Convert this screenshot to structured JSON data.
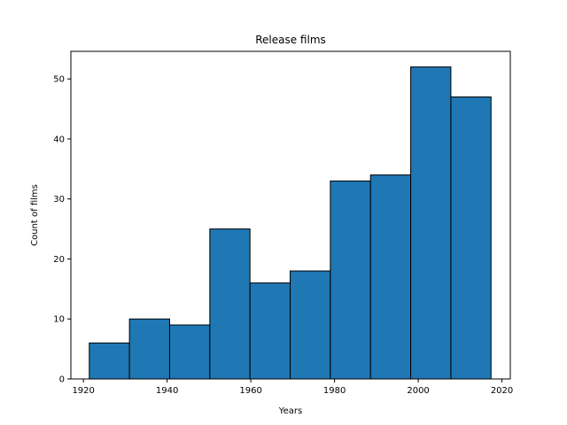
{
  "chart_data": {
    "type": "bar",
    "title": "Release films",
    "xlabel": "Years",
    "ylabel": "Count of films",
    "bin_edges": [
      1921.4,
      1931.0,
      1940.6,
      1950.2,
      1959.8,
      1969.4,
      1979.0,
      1988.6,
      1998.2,
      2007.8,
      2017.4
    ],
    "values": [
      6,
      10,
      9,
      25,
      16,
      18,
      33,
      34,
      52,
      47
    ],
    "xlim": [
      1917,
      2022
    ],
    "ylim": [
      0,
      54.6
    ],
    "xticks": [
      1920,
      1940,
      1960,
      1980,
      2000,
      2020
    ],
    "yticks": [
      0,
      10,
      20,
      30,
      40,
      50
    ],
    "bar_color": "#1f77b4",
    "edge_color": "#000000",
    "grid": false,
    "legend": "none"
  }
}
